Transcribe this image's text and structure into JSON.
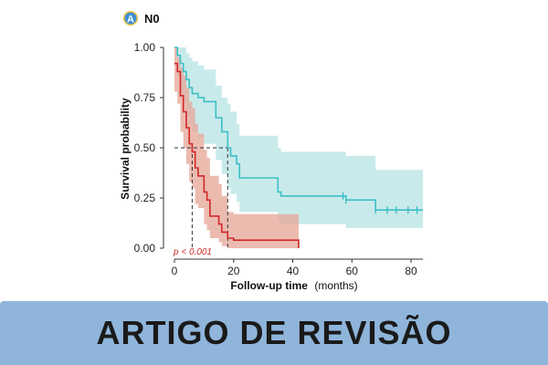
{
  "panel": {
    "badge": "A",
    "title": "N0"
  },
  "banner": {
    "text": "ARTIGO DE REVISÃO"
  },
  "colors": {
    "teal_line": "#3bbfc6",
    "teal_band": "#bfe6e6",
    "red_line": "#d02929",
    "red_band": "#e7a89a",
    "badge_bg": "#3f8fd6",
    "badge_ring": "#f2c23a",
    "banner_bg": "#8fb5db"
  },
  "chart_data": {
    "type": "line",
    "step": true,
    "xlabel": "Follow-up time",
    "xlabel_unit": "(months)",
    "ylabel": "Survival probability",
    "xlim": [
      0,
      84
    ],
    "ylim": [
      0,
      1
    ],
    "x_ticks": [
      0,
      20,
      40,
      60,
      80
    ],
    "y_ticks": [
      0.0,
      0.25,
      0.5,
      0.75,
      1.0
    ],
    "y_tick_labels": [
      "0.00",
      "0.25",
      "0.50",
      "0.75",
      "1.00"
    ],
    "annotation": "p < 0.001",
    "median_lines": [
      {
        "series": "red",
        "x": 6,
        "y": 0.5
      },
      {
        "series": "teal",
        "x": 18,
        "y": 0.5
      }
    ],
    "series": [
      {
        "id": "teal",
        "color": "#3bbfc6",
        "band_color": "#bfe6e6",
        "x": [
          0,
          1,
          2,
          3,
          4,
          5,
          6,
          8,
          10,
          14,
          16,
          18,
          19,
          21,
          22,
          35,
          36,
          42,
          58,
          68,
          84
        ],
        "y": [
          1.0,
          0.96,
          0.92,
          0.88,
          0.84,
          0.8,
          0.77,
          0.75,
          0.73,
          0.65,
          0.58,
          0.5,
          0.46,
          0.42,
          0.35,
          0.28,
          0.26,
          0.26,
          0.24,
          0.19,
          0.19
        ],
        "lower": [
          1.0,
          0.86,
          0.78,
          0.72,
          0.66,
          0.62,
          0.58,
          0.55,
          0.52,
          0.44,
          0.37,
          0.3,
          0.27,
          0.23,
          0.18,
          0.14,
          0.12,
          0.12,
          0.1,
          0.1,
          0.1
        ],
        "upper": [
          1.0,
          1.0,
          1.0,
          1.0,
          0.97,
          0.95,
          0.93,
          0.91,
          0.89,
          0.81,
          0.75,
          0.72,
          0.68,
          0.62,
          0.56,
          0.5,
          0.48,
          0.48,
          0.46,
          0.39,
          0.39
        ],
        "censor_x": [
          57,
          58,
          68,
          72,
          75,
          79,
          82
        ]
      },
      {
        "id": "red",
        "color": "#d02929",
        "band_color": "#e7a89a",
        "x": [
          0,
          1,
          2,
          3,
          4,
          5,
          6,
          7,
          8,
          10,
          11,
          12,
          15,
          16,
          18,
          20,
          42
        ],
        "y": [
          0.92,
          0.88,
          0.76,
          0.68,
          0.6,
          0.52,
          0.48,
          0.4,
          0.36,
          0.28,
          0.24,
          0.16,
          0.12,
          0.08,
          0.05,
          0.04,
          0.0
        ],
        "lower": [
          0.78,
          0.72,
          0.58,
          0.5,
          0.42,
          0.33,
          0.3,
          0.22,
          0.2,
          0.12,
          0.09,
          0.05,
          0.03,
          0.01,
          0.0,
          0.0,
          0.0
        ],
        "upper": [
          1.0,
          0.95,
          0.9,
          0.86,
          0.8,
          0.73,
          0.7,
          0.62,
          0.57,
          0.49,
          0.45,
          0.36,
          0.32,
          0.26,
          0.18,
          0.17,
          0.17
        ]
      }
    ]
  }
}
